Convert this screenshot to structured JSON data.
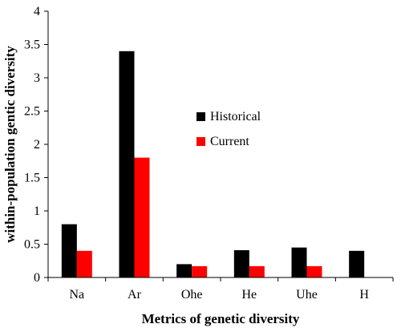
{
  "chart_data": {
    "type": "bar",
    "categories": [
      "Na",
      "Ar",
      "Ohe",
      "He",
      "Uhe",
      "H"
    ],
    "series": [
      {
        "name": "Historical",
        "color": "#000000",
        "values": [
          0.8,
          3.4,
          0.2,
          0.41,
          0.45,
          0.4
        ]
      },
      {
        "name": "Current",
        "color": "#ff0000",
        "values": [
          0.4,
          1.8,
          0.17,
          0.17,
          0.17,
          null
        ]
      }
    ],
    "xlabel": "Metrics of genetic diversity",
    "ylabel": "within-population gentic diversity",
    "ylim": [
      0,
      4
    ],
    "yticks": [
      "0",
      "0.5",
      "1",
      "1.5",
      "2",
      "2.5",
      "3",
      "3.5",
      "4"
    ],
    "grid": false,
    "legend_position": "center-right"
  }
}
